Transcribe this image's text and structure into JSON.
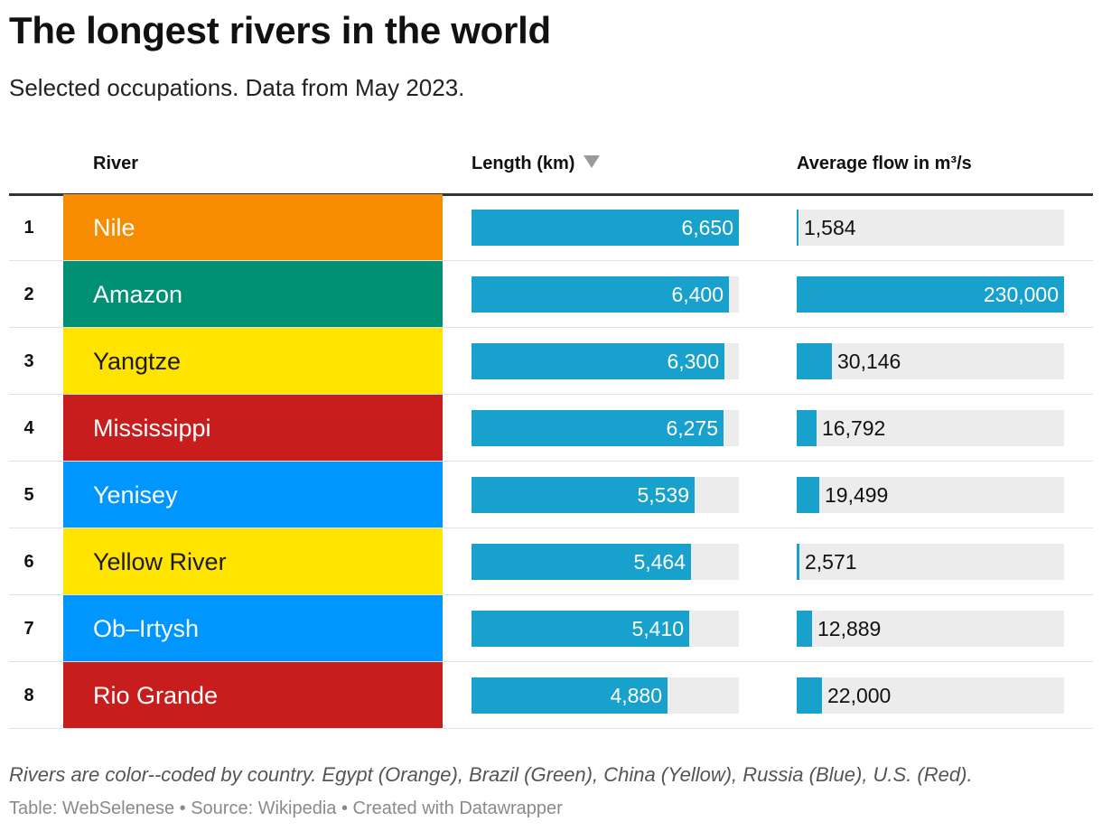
{
  "title": "The longest rivers in the world",
  "subtitle": "Selected occupations. Data from May 2023.",
  "headers": {
    "river": "River",
    "length": "Length (km)",
    "flow": "Average flow in m³/s"
  },
  "sort_indicator": "descending",
  "colors": {
    "bar": "#18a1cd",
    "bar_background": "#ececec",
    "orange": "#f78c00",
    "green": "#009074",
    "yellow": "#ffe400",
    "red": "#c71e1d",
    "blue": "#0096ff"
  },
  "chart_data": {
    "type": "table",
    "columns": [
      "",
      "River",
      "Length (km)",
      "Average flow in m³/s"
    ],
    "length_max": 6650,
    "flow_max": 230000,
    "rows": [
      {
        "rank": "1",
        "river": "Nile",
        "color": "#f78c00",
        "text_color": "#ffffff",
        "length": 6650,
        "length_label": "6,650",
        "flow": 1584,
        "flow_label": "1,584"
      },
      {
        "rank": "2",
        "river": "Amazon",
        "color": "#009074",
        "text_color": "#ffffff",
        "length": 6400,
        "length_label": "6,400",
        "flow": 230000,
        "flow_label": "230,000"
      },
      {
        "rank": "3",
        "river": "Yangtze",
        "color": "#ffe400",
        "text_color": "#1a1a1a",
        "length": 6300,
        "length_label": "6,300",
        "flow": 30146,
        "flow_label": "30,146"
      },
      {
        "rank": "4",
        "river": "Mississippi",
        "color": "#c71e1d",
        "text_color": "#ffffff",
        "length": 6275,
        "length_label": "6,275",
        "flow": 16792,
        "flow_label": "16,792"
      },
      {
        "rank": "5",
        "river": "Yenisey",
        "color": "#0096ff",
        "text_color": "#ffffff",
        "length": 5539,
        "length_label": "5,539",
        "flow": 19499,
        "flow_label": "19,499"
      },
      {
        "rank": "6",
        "river": "Yellow River",
        "color": "#ffe400",
        "text_color": "#1a1a1a",
        "length": 5464,
        "length_label": "5,464",
        "flow": 2571,
        "flow_label": "2,571"
      },
      {
        "rank": "7",
        "river": "Ob–Irtysh",
        "color": "#0096ff",
        "text_color": "#ffffff",
        "length": 5410,
        "length_label": "5,410",
        "flow": 12889,
        "flow_label": "12,889"
      },
      {
        "rank": "8",
        "river": "Rio Grande",
        "color": "#c71e1d",
        "text_color": "#ffffff",
        "length": 4880,
        "length_label": "4,880",
        "flow": 22000,
        "flow_label": "22,000"
      }
    ]
  },
  "note": "Rivers are color--coded by country. Egypt (Orange), Brazil (Green), China (Yellow), Russia (Blue), U.S. (Red).",
  "source": "Table: WebSelenese • Source: Wikipedia • Created with Datawrapper"
}
